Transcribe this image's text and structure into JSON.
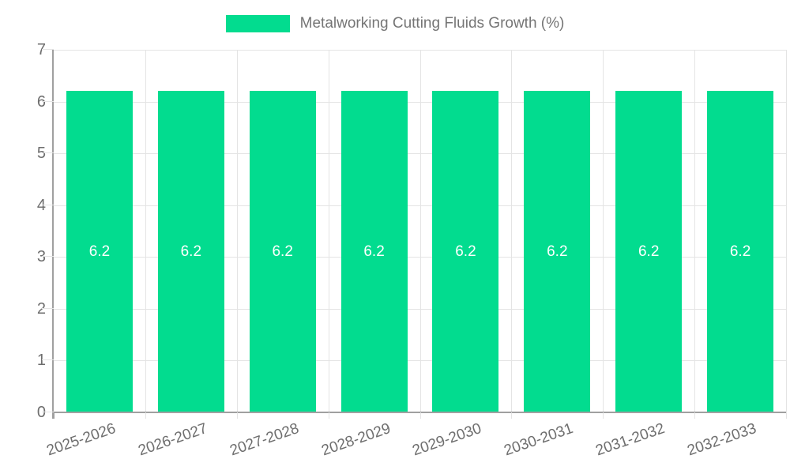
{
  "chart_data": {
    "type": "bar",
    "title": "Metalworking Cutting Fluids Growth (%)",
    "categories": [
      "2025-2026",
      "2026-2027",
      "2027-2028",
      "2028-2029",
      "2029-2030",
      "2030-2031",
      "2031-2032",
      "2032-2033"
    ],
    "series": [
      {
        "name": "Metalworking Cutting Fluids Growth (%)",
        "values": [
          6.2,
          6.2,
          6.2,
          6.2,
          6.2,
          6.2,
          6.2,
          6.2
        ]
      }
    ],
    "value_labels": [
      "6.2",
      "6.2",
      "6.2",
      "6.2",
      "6.2",
      "6.2",
      "6.2",
      "6.2"
    ],
    "xlabel": "",
    "ylabel": "",
    "ylim": [
      0,
      7
    ],
    "yticks": [
      0,
      1,
      2,
      3,
      4,
      5,
      6,
      7
    ],
    "grid": true,
    "legend_position": "top",
    "colors": {
      "bar": "#02DC8F",
      "legend_text": "#757575",
      "tick_text": "#6E6E6E",
      "grid": "#E4E4E4",
      "axis": "#A0A0A0",
      "value_text": "#FFFFFF",
      "background": "#FFFFFF"
    }
  }
}
